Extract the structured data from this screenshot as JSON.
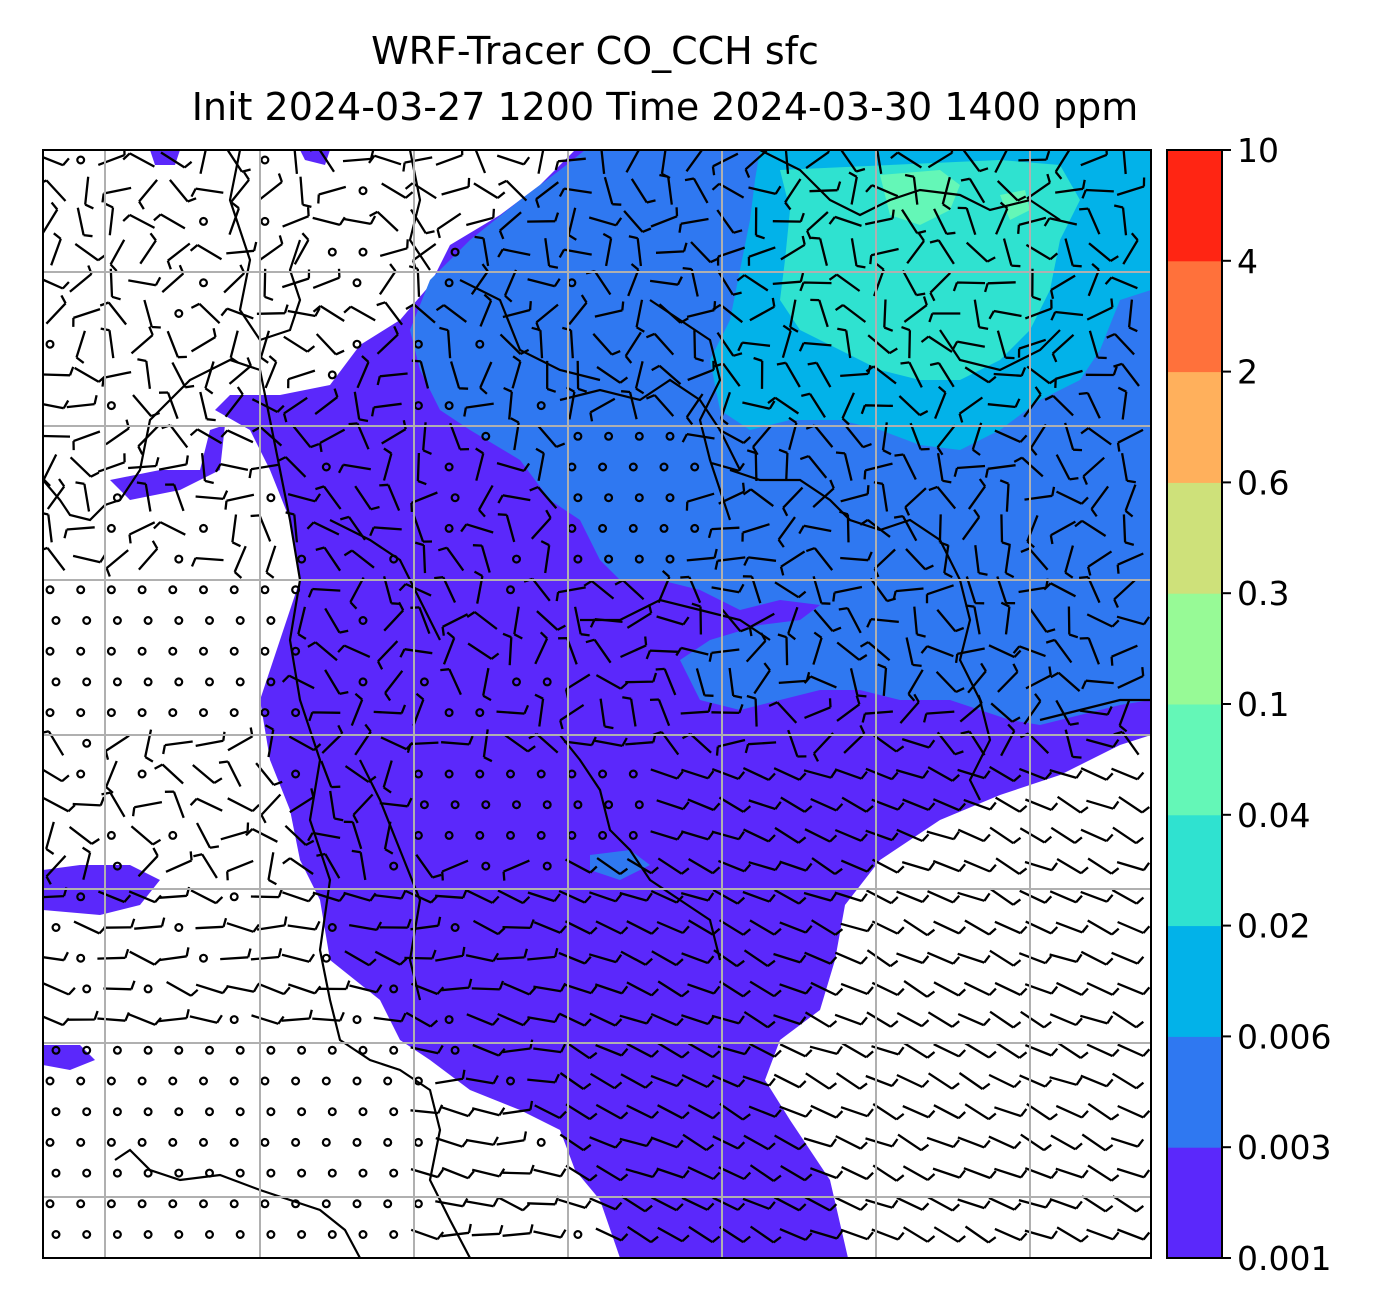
{
  "title_line1": "WRF-Tracer CO_CCH sfc",
  "title_line2": "Init 2024-03-27 1200 Time 2024-03-30 1400 ppm",
  "colorbar": {
    "levels": [
      "0.001",
      "0.003",
      "0.006",
      "0.02",
      "0.04",
      "0.1",
      "0.3",
      "0.6",
      "2",
      "4",
      "10"
    ],
    "colors": [
      "#5b28fb",
      "#2f78f1",
      "#02b2e9",
      "#2fe2d0",
      "#64f7b7",
      "#97fa96",
      "#cee17a",
      "#ffb05c",
      "#ff713b",
      "#ff2513"
    ]
  },
  "wind_barbs_shown": true,
  "gridlines_shown": true,
  "coastlines_shown": true
}
